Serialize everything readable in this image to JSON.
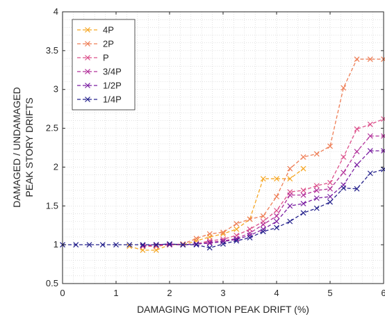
{
  "chart_data": {
    "type": "line",
    "xlabel": "DAMAGING MOTION PEAK DRIFT (%)",
    "ylabel_lines": [
      "DAMAGED / UNDAMAGED",
      "PEAK STORY DRIFTS"
    ],
    "xlim": [
      0,
      6
    ],
    "ylim": [
      0.5,
      4
    ],
    "xticks": [
      0,
      1,
      2,
      3,
      4,
      5,
      6
    ],
    "yticks": [
      0.5,
      1,
      1.5,
      2,
      2.5,
      3,
      3.5,
      4
    ],
    "yticklabels": [
      "0.5",
      "1",
      "1.5",
      "2",
      "2.5",
      "3",
      "3.5",
      "4"
    ],
    "grid": "dotted",
    "legend_position": "top-left",
    "line_style": "dashed",
    "marker": "x",
    "series": [
      {
        "name": "4P",
        "color": "#f5a623",
        "x": [
          1.25,
          1.5,
          1.75,
          2.0,
          2.25,
          2.5,
          2.75,
          3.0,
          3.25,
          3.5,
          3.75,
          4.0,
          4.25,
          4.5
        ],
        "y": [
          0.98,
          0.93,
          0.93,
          1.0,
          1.0,
          1.05,
          1.1,
          1.14,
          1.2,
          1.33,
          1.85,
          1.85,
          1.85,
          1.98
        ]
      },
      {
        "name": "2P",
        "color": "#ee7d55",
        "x": [
          1.5,
          1.75,
          2.0,
          2.25,
          2.5,
          2.75,
          3.0,
          3.25,
          3.5,
          3.75,
          4.0,
          4.25,
          4.5,
          4.75,
          5.0,
          5.25,
          5.5,
          5.75,
          6.0
        ],
        "y": [
          0.98,
          0.98,
          1.0,
          1.01,
          1.08,
          1.14,
          1.16,
          1.27,
          1.33,
          1.37,
          1.62,
          1.98,
          2.13,
          2.17,
          2.27,
          3.02,
          3.39,
          3.39,
          3.39
        ]
      },
      {
        "name": "P",
        "color": "#dc4f8a",
        "x": [
          1.5,
          1.75,
          2.0,
          2.25,
          2.5,
          2.75,
          3.0,
          3.25,
          3.5,
          3.75,
          4.0,
          4.25,
          4.5,
          4.75,
          5.0,
          5.25,
          5.5,
          5.75,
          6.0
        ],
        "y": [
          0.98,
          0.99,
          1.0,
          1.0,
          1.01,
          1.05,
          1.07,
          1.12,
          1.2,
          1.3,
          1.44,
          1.68,
          1.7,
          1.76,
          1.8,
          2.13,
          2.49,
          2.55,
          2.62
        ]
      },
      {
        "name": "3/4P",
        "color": "#b2309a",
        "x": [
          1.5,
          1.75,
          2.0,
          2.25,
          2.5,
          2.75,
          3.0,
          3.25,
          3.5,
          3.75,
          4.0,
          4.25,
          4.5,
          4.75,
          5.0,
          5.25,
          5.5,
          5.75,
          6.0
        ],
        "y": [
          0.99,
          1.0,
          1.0,
          1.0,
          1.01,
          1.03,
          1.05,
          1.08,
          1.15,
          1.26,
          1.37,
          1.64,
          1.64,
          1.7,
          1.72,
          1.93,
          2.2,
          2.4,
          2.4
        ]
      },
      {
        "name": "1/2P",
        "color": "#7a1fa2",
        "x": [
          1.5,
          1.75,
          2.0,
          2.25,
          2.5,
          2.75,
          3.0,
          3.25,
          3.5,
          3.75,
          4.0,
          4.25,
          4.5,
          4.75,
          5.0,
          5.25,
          5.5,
          5.75,
          6.0
        ],
        "y": [
          0.99,
          1.0,
          1.01,
          1.0,
          1.01,
          1.02,
          1.04,
          1.07,
          1.12,
          1.2,
          1.3,
          1.5,
          1.53,
          1.6,
          1.62,
          1.77,
          2.03,
          2.21,
          2.21
        ]
      },
      {
        "name": "1/4P",
        "color": "#24218c",
        "x": [
          0.0,
          0.25,
          0.5,
          0.75,
          1.0,
          1.25,
          1.5,
          1.75,
          2.0,
          2.25,
          2.5,
          2.75,
          3.0,
          3.25,
          3.5,
          3.75,
          4.0,
          4.25,
          4.5,
          4.75,
          5.0,
          5.25,
          5.5,
          5.75,
          6.0
        ],
        "y": [
          1.0,
          1.0,
          1.0,
          1.0,
          1.0,
          1.0,
          1.0,
          1.0,
          1.01,
          1.0,
          1.0,
          0.96,
          1.01,
          1.05,
          1.09,
          1.17,
          1.22,
          1.3,
          1.41,
          1.47,
          1.55,
          1.73,
          1.72,
          1.92,
          1.97
        ]
      }
    ]
  }
}
